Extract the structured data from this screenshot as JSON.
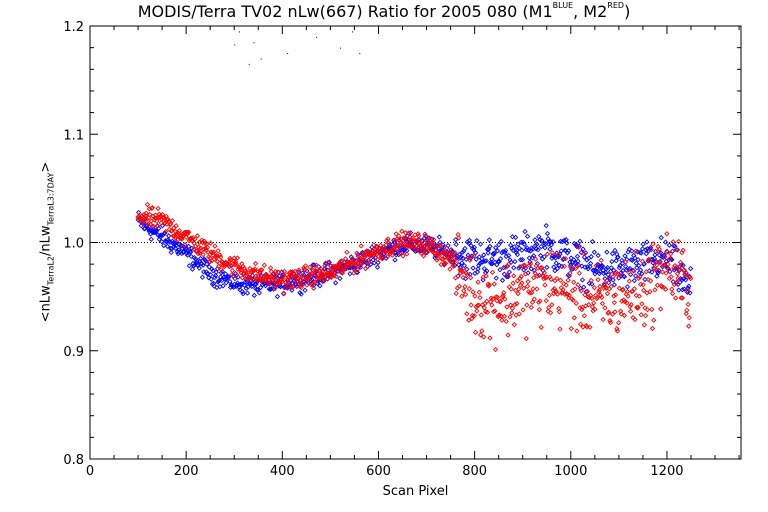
{
  "chart_data": {
    "type": "scatter",
    "title": {
      "main": "MODIS/Terra TV02 nLw(667) Ratio for 2005 080 (M1",
      "sup1": "BLUE",
      "mid": ", M2",
      "sup2": "RED",
      "end": ")"
    },
    "xlabel": "Scan Pixel",
    "ylabel": {
      "p1": "<nLw",
      "s1": "TerraL2",
      "p2": "/nLw",
      "s2": "TerraL3:7DAY",
      "p3": ">"
    },
    "xlim": [
      0,
      1354
    ],
    "ylim": [
      0.8,
      1.2
    ],
    "x_ticks": [
      "0",
      "200",
      "400",
      "600",
      "800",
      "1000",
      "1200"
    ],
    "y_ticks": [
      "0.8",
      "0.9",
      "1.0",
      "1.1",
      "1.2"
    ],
    "reference_line": 1.0,
    "grid": false,
    "series": [
      {
        "color": "#0000ff",
        "marker": "diamond",
        "x_range": [
          100,
          1250
        ],
        "trend": [
          [
            100,
            1.02
          ],
          [
            150,
            1.005
          ],
          [
            200,
            0.99
          ],
          [
            250,
            0.972
          ],
          [
            300,
            0.963
          ],
          [
            350,
            0.96
          ],
          [
            400,
            0.962
          ],
          [
            450,
            0.967
          ],
          [
            500,
            0.972
          ],
          [
            550,
            0.98
          ],
          [
            600,
            0.99
          ],
          [
            650,
            0.998
          ],
          [
            700,
            0.997
          ],
          [
            750,
            0.99
          ],
          [
            800,
            0.985
          ],
          [
            850,
            0.985
          ],
          [
            900,
            0.988
          ],
          [
            950,
            0.995
          ],
          [
            1000,
            0.985
          ],
          [
            1050,
            0.975
          ],
          [
            1100,
            0.975
          ],
          [
            1150,
            0.98
          ],
          [
            1200,
            0.985
          ],
          [
            1250,
            0.955
          ]
        ]
      },
      {
        "color": "#ff0000",
        "marker": "diamond",
        "x_range": [
          100,
          1250
        ],
        "trend": [
          [
            100,
            1.025
          ],
          [
            150,
            1.02
          ],
          [
            200,
            1.005
          ],
          [
            250,
            0.99
          ],
          [
            300,
            0.978
          ],
          [
            350,
            0.97
          ],
          [
            400,
            0.965
          ],
          [
            450,
            0.968
          ],
          [
            500,
            0.972
          ],
          [
            550,
            0.982
          ],
          [
            600,
            0.993
          ],
          [
            650,
            1.0
          ],
          [
            700,
            0.998
          ],
          [
            750,
            0.985
          ],
          [
            800,
            0.95
          ],
          [
            850,
            0.945
          ],
          [
            900,
            0.955
          ],
          [
            950,
            0.96
          ],
          [
            1000,
            0.955
          ],
          [
            1050,
            0.945
          ],
          [
            1100,
            0.95
          ],
          [
            1150,
            0.955
          ],
          [
            1200,
            0.98
          ],
          [
            1250,
            0.955
          ]
        ]
      }
    ],
    "outliers": [
      [
        310,
        1.195
      ],
      [
        340,
        1.185
      ],
      [
        355,
        1.17
      ],
      [
        410,
        1.175
      ],
      [
        470,
        1.19
      ],
      [
        520,
        1.18
      ],
      [
        545,
        1.195
      ],
      [
        560,
        1.175
      ],
      [
        300,
        1.183
      ],
      [
        330,
        1.165
      ]
    ]
  }
}
